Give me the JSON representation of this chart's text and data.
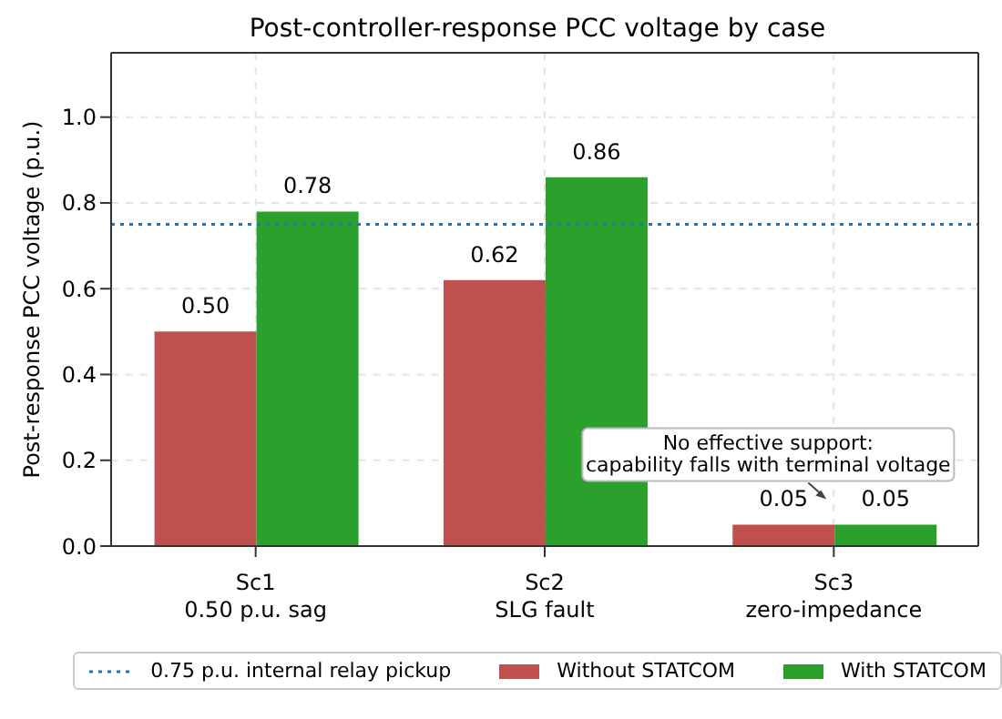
{
  "chart_data": {
    "type": "bar",
    "title": "Post-controller-response PCC voltage by case",
    "ylabel": "Post-response PCC voltage (p.u.)",
    "categories": [
      "Sc1\n0.50 p.u. sag",
      "Sc2\nSLG fault",
      "Sc3\nzero-impedance"
    ],
    "series": [
      {
        "name": "Without STATCOM",
        "color": "#c0504d",
        "values": [
          0.5,
          0.62,
          0.05
        ],
        "value_labels": [
          "0.50",
          "0.62",
          "0.05"
        ]
      },
      {
        "name": "With STATCOM",
        "color": "#2ca02c",
        "values": [
          0.78,
          0.86,
          0.05
        ],
        "value_labels": [
          "0.78",
          "0.86",
          "0.05"
        ]
      }
    ],
    "ylim": [
      0,
      1.15
    ],
    "yticks": [
      {
        "value": 0,
        "label": "0.0"
      },
      {
        "value": 0.2,
        "label": "0.2"
      },
      {
        "value": 0.4,
        "label": "0.4"
      },
      {
        "value": 0.6,
        "label": "0.6"
      },
      {
        "value": 0.8,
        "label": "0.8"
      },
      {
        "value": 1,
        "label": "1.0"
      }
    ],
    "ref_lines": [
      {
        "axis": "y",
        "value": 0.75,
        "label": "0.75 p.u. internal relay pickup",
        "color": "#1f77b4",
        "line_style": "dotted"
      }
    ],
    "annotations": [
      {
        "text": "No effective support:\ncapability falls with terminal voltage",
        "x": "Sc3\nzero-impedance",
        "y": 0.05
      }
    ],
    "grid": true,
    "legend": "bottom"
  }
}
